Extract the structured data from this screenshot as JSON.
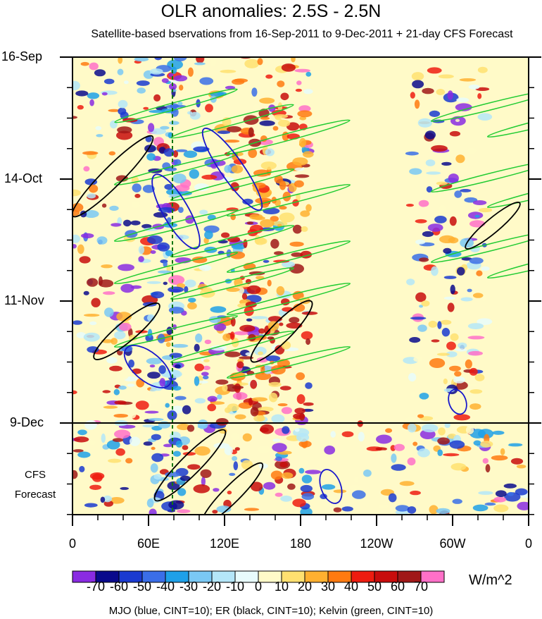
{
  "chart_data": {
    "type": "heatmap",
    "title": "OLR anomalies: 2.5S - 2.5N",
    "subtitle": "Satellite-based bservations from 16-Sep-2011 to 9-Dec-2011 + 21-day CFS Forecast",
    "y_tick_labels": [
      "16-Sep",
      "14-Oct",
      "11-Nov",
      "9-Dec"
    ],
    "x_tick_labels": [
      "0",
      "60E",
      "120E",
      "180",
      "120W",
      "60W",
      "0"
    ],
    "forecast_label": [
      "CFS",
      "Forecast"
    ],
    "colorbar": {
      "unit": "W/m^2",
      "labels": [
        "-70",
        "-60",
        "-50",
        "-40",
        "-30",
        "-20",
        "-10",
        "0",
        "10",
        "20",
        "30",
        "40",
        "50",
        "60",
        "70"
      ],
      "colors": [
        "#8a2be2",
        "#0a0a8c",
        "#1a3ad0",
        "#3a6ee8",
        "#1ea0e8",
        "#7ac8f4",
        "#b4e6f8",
        "#e8fbfc",
        "#fffac8",
        "#ffe070",
        "#ffb030",
        "#ff7a10",
        "#ee1c10",
        "#c80c0c",
        "#a01818",
        "#ff70c8"
      ]
    },
    "overlays": "MJO (blue, CINT=10); ER (black, CINT=10); Kelvin (green, CINT=10)"
  }
}
